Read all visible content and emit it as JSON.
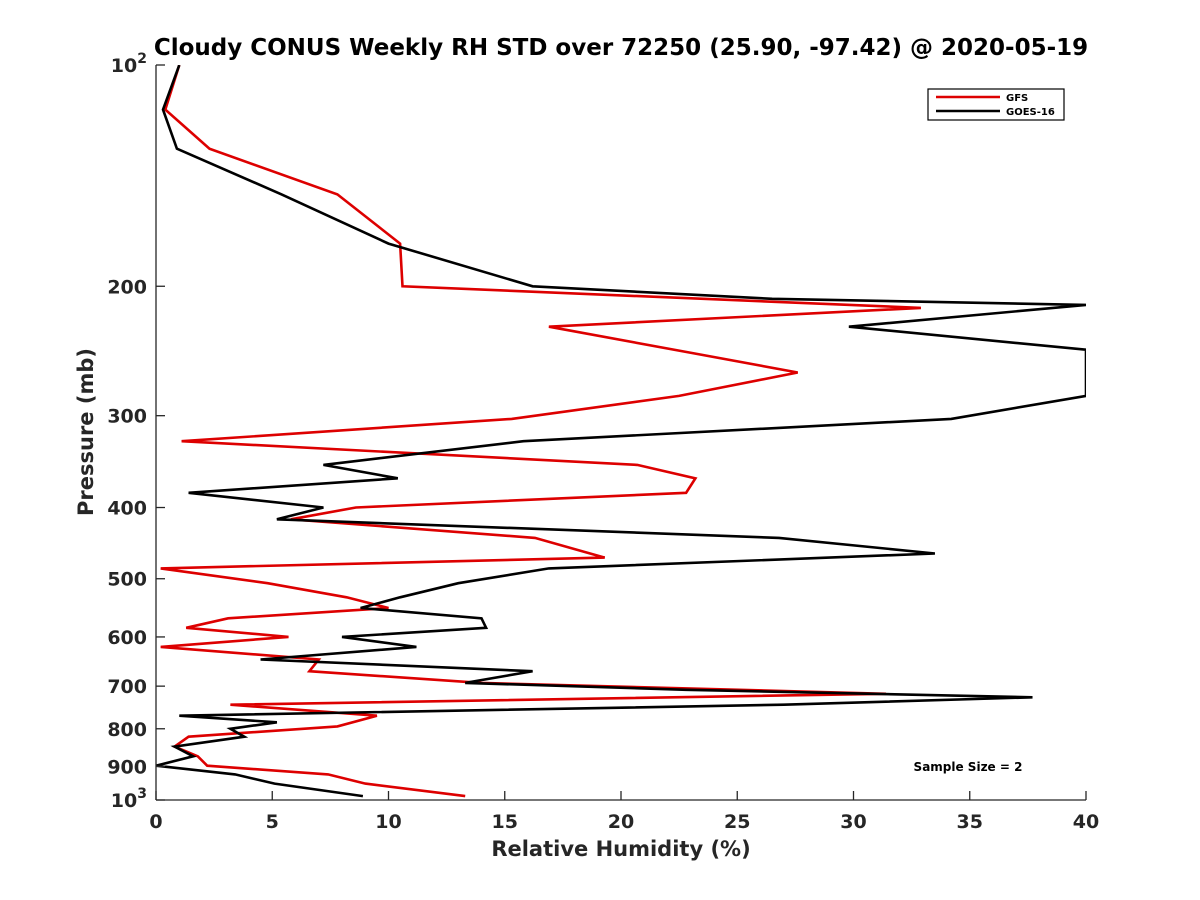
{
  "chart_data": {
    "type": "line",
    "title": "Cloudy CONUS Weekly RH STD over 72250 (25.90, -97.42) @ 2020-05-19",
    "xlabel": "Relative Humidity (%)",
    "ylabel": "Pressure (mb)",
    "xlim": [
      0,
      40
    ],
    "ylim": [
      100,
      1000
    ],
    "yscale": "log",
    "y_reversed": true,
    "x_ticks": [
      0,
      5,
      10,
      15,
      20,
      25,
      30,
      35,
      40
    ],
    "x_tick_labels": [
      "0",
      "5",
      "10",
      "15",
      "20",
      "25",
      "30",
      "35",
      "40"
    ],
    "y_ticks": [
      100,
      200,
      300,
      400,
      500,
      600,
      700,
      800,
      900,
      1000
    ],
    "y_tick_labels": [
      {
        "base": "10",
        "exp": "2"
      },
      {
        "base": "200",
        "exp": ""
      },
      {
        "base": "300",
        "exp": ""
      },
      {
        "base": "400",
        "exp": ""
      },
      {
        "base": "500",
        "exp": ""
      },
      {
        "base": "600",
        "exp": ""
      },
      {
        "base": "700",
        "exp": ""
      },
      {
        "base": "800",
        "exp": ""
      },
      {
        "base": "900",
        "exp": ""
      },
      {
        "base": "10",
        "exp": "3"
      }
    ],
    "grid": false,
    "legend_position": "top-right",
    "annotation": "Sample Size = 2",
    "series": [
      {
        "name": "GFS",
        "color": "#dd0000",
        "points": [
          [
            1.0,
            100
          ],
          [
            0.4,
            115
          ],
          [
            2.3,
            130
          ],
          [
            7.8,
            150
          ],
          [
            10.5,
            175
          ],
          [
            10.6,
            200
          ],
          [
            32.9,
            214
          ],
          [
            16.9,
            227
          ],
          [
            23.2,
            247
          ],
          [
            27.6,
            262
          ],
          [
            22.5,
            282
          ],
          [
            15.3,
            303
          ],
          [
            1.1,
            325
          ],
          [
            20.7,
            350
          ],
          [
            23.2,
            365
          ],
          [
            22.8,
            382
          ],
          [
            8.6,
            400
          ],
          [
            5.8,
            415
          ],
          [
            16.3,
            440
          ],
          [
            19.3,
            468
          ],
          [
            0.2,
            484
          ],
          [
            4.8,
            507
          ],
          [
            8.2,
            530
          ],
          [
            10.0,
            548
          ],
          [
            3.1,
            566
          ],
          [
            1.3,
            583
          ],
          [
            5.7,
            600
          ],
          [
            0.2,
            619
          ],
          [
            7.0,
            644
          ],
          [
            6.6,
            668
          ],
          [
            14.0,
            693
          ],
          [
            31.4,
            717
          ],
          [
            3.2,
            742
          ],
          [
            9.5,
            768
          ],
          [
            7.8,
            794
          ],
          [
            1.4,
            820
          ],
          [
            0.8,
            846
          ],
          [
            1.8,
            872
          ],
          [
            2.2,
            898
          ],
          [
            7.4,
            923
          ],
          [
            9.0,
            950
          ],
          [
            13.3,
            988
          ]
        ]
      },
      {
        "name": "GOES-16",
        "color": "#000000",
        "points": [
          [
            1.0,
            100
          ],
          [
            0.3,
            115
          ],
          [
            0.9,
            130
          ],
          [
            5.4,
            150
          ],
          [
            10.0,
            175
          ],
          [
            16.2,
            200
          ],
          [
            26.5,
            208
          ],
          [
            40.0,
            212
          ],
          [
            29.8,
            227
          ],
          [
            40.0,
            244
          ],
          [
            40.0,
            262
          ],
          [
            40.0,
            282
          ],
          [
            34.2,
            303
          ],
          [
            15.8,
            325
          ],
          [
            7.2,
            350
          ],
          [
            10.4,
            365
          ],
          [
            1.4,
            382
          ],
          [
            7.2,
            400
          ],
          [
            5.2,
            415
          ],
          [
            26.8,
            440
          ],
          [
            33.5,
            462
          ],
          [
            16.9,
            484
          ],
          [
            13.0,
            507
          ],
          [
            10.5,
            530
          ],
          [
            8.8,
            548
          ],
          [
            14.0,
            566
          ],
          [
            14.2,
            583
          ],
          [
            8.0,
            600
          ],
          [
            11.2,
            619
          ],
          [
            4.5,
            644
          ],
          [
            16.2,
            668
          ],
          [
            13.3,
            693
          ],
          [
            22.8,
            708
          ],
          [
            37.7,
            725
          ],
          [
            27.0,
            742
          ],
          [
            1.0,
            768
          ],
          [
            5.2,
            784
          ],
          [
            3.2,
            800
          ],
          [
            3.8,
            820
          ],
          [
            0.8,
            846
          ],
          [
            1.6,
            872
          ],
          [
            0.0,
            898
          ],
          [
            3.4,
            923
          ],
          [
            5.1,
            950
          ],
          [
            8.9,
            988
          ]
        ]
      }
    ]
  }
}
